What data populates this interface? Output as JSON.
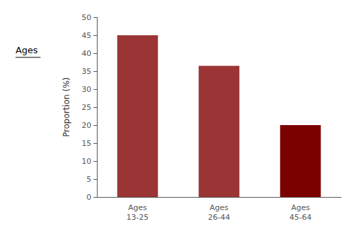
{
  "chart_data": {
    "type": "bar",
    "ylabel": "Proportion (%)",
    "annotation": "Ages",
    "categories": [
      "Ages\n13-25",
      "Ages\n26-44",
      "Ages\n45-64"
    ],
    "values": [
      45,
      36.5,
      20
    ],
    "colors": [
      "#9b3535",
      "#9b3535",
      "#7b0000"
    ],
    "ylim": [
      0,
      50
    ],
    "yticks": [
      0,
      5,
      10,
      15,
      20,
      25,
      30,
      35,
      40,
      45,
      50
    ],
    "grid": false
  }
}
